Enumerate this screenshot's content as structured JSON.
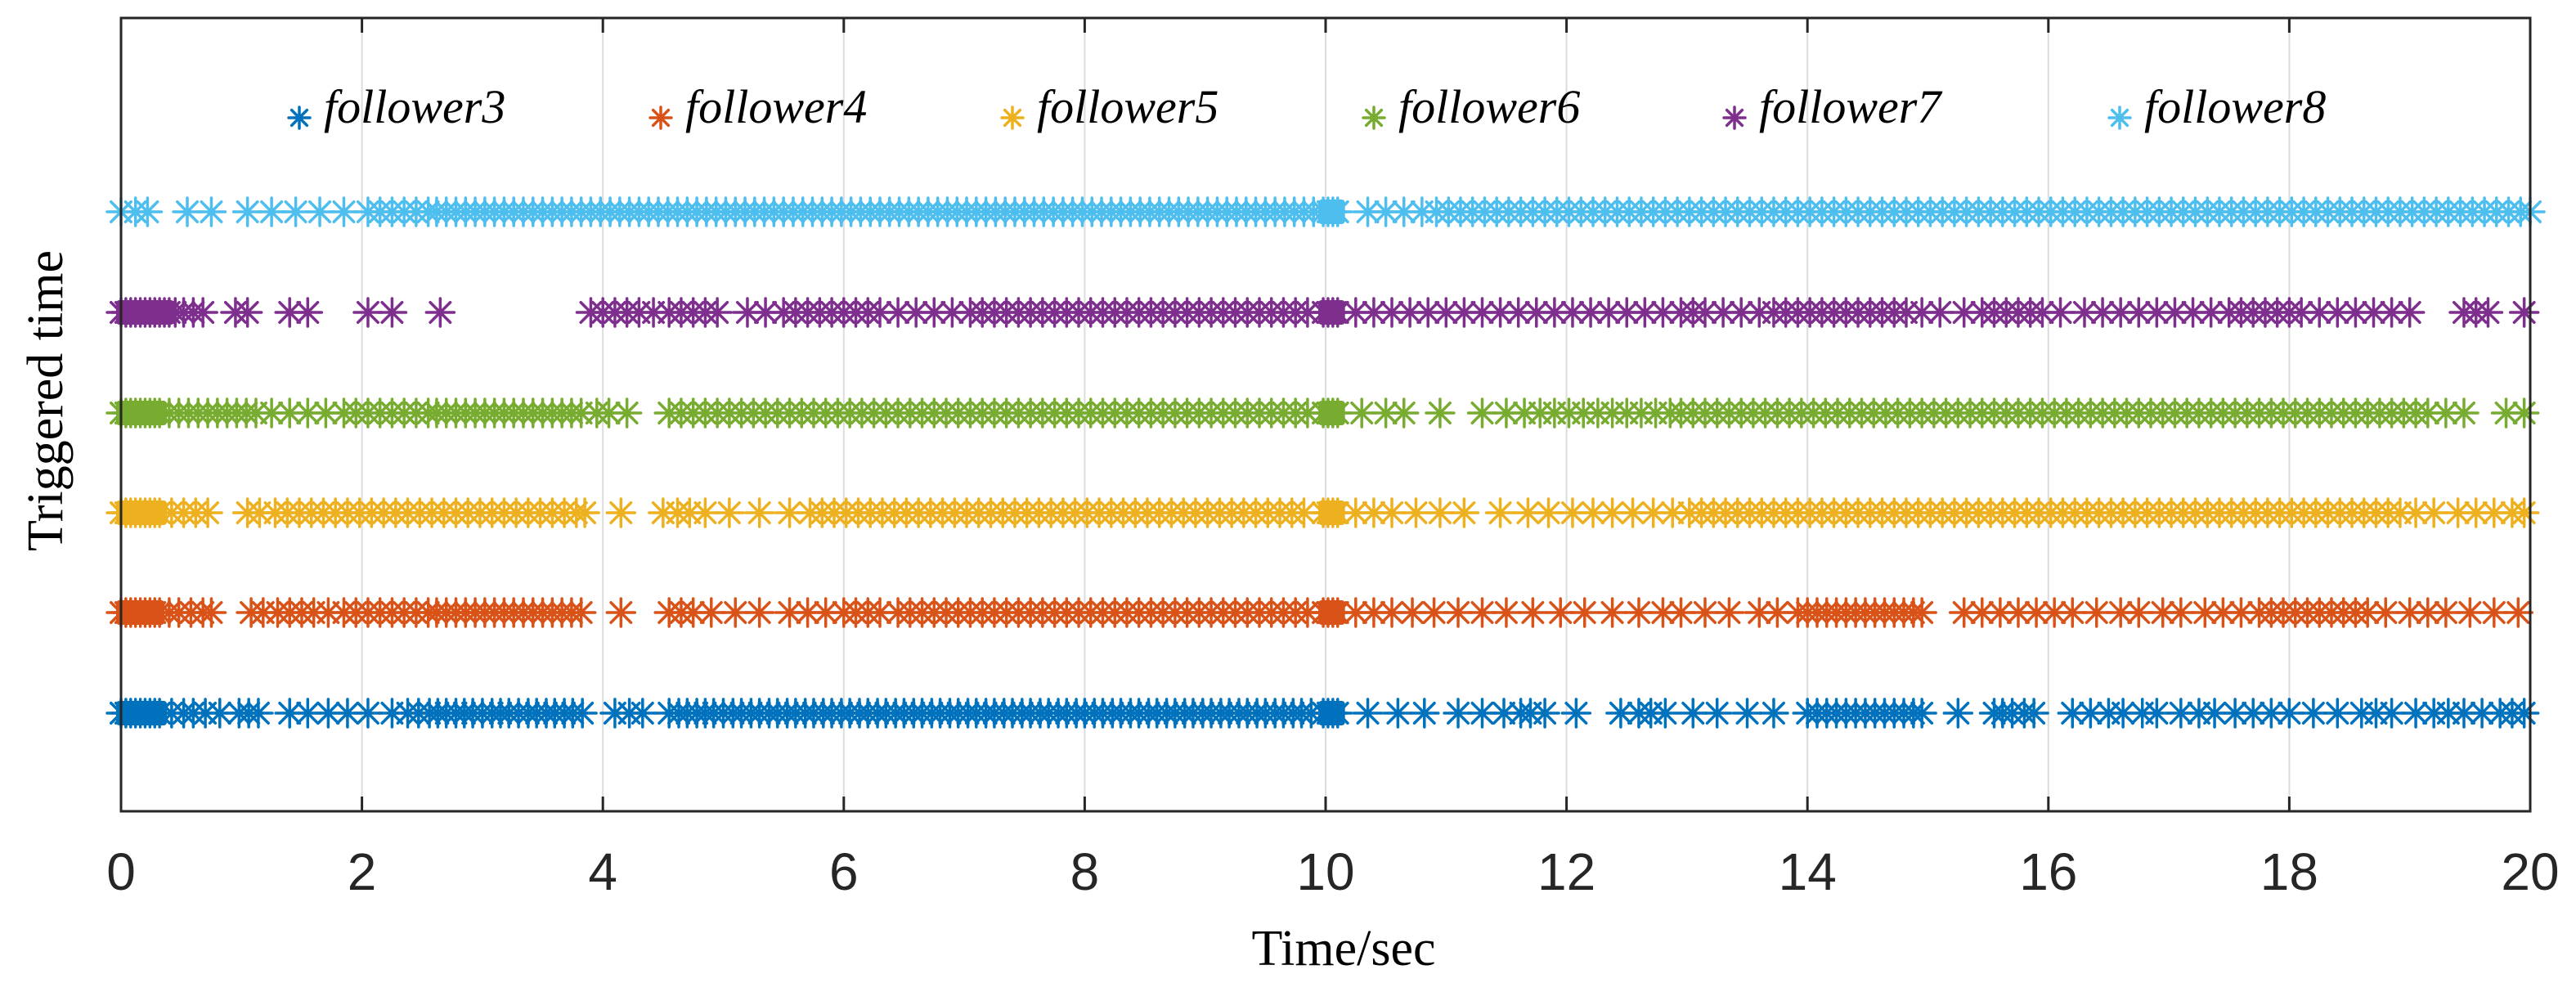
{
  "chart_data": {
    "type": "scatter",
    "title": "",
    "xlabel": "Time/sec",
    "ylabel": "Triggered time",
    "xlim": [
      0,
      20
    ],
    "x_ticks": [
      0,
      2,
      4,
      6,
      8,
      10,
      12,
      14,
      16,
      18,
      20
    ],
    "x_tick_labels": [
      "0",
      "2",
      "4",
      "6",
      "8",
      "10",
      "12",
      "14",
      "16",
      "18",
      "20"
    ],
    "grid": "vertical",
    "legend_placement": "top",
    "colors": {
      "follower3": "#0072BD",
      "follower4": "#D95319",
      "follower5": "#EDB120",
      "follower6": "#77AC30",
      "follower7": "#7E2F8E",
      "follower8": "#4DBEEE",
      "axis": "#262626",
      "grid": "#dcdcdc"
    },
    "series": [
      {
        "name": "follower3",
        "level": 1,
        "color": "#0072BD",
        "dense_segments": [
          [
            0.0,
            0.34
          ],
          [
            9.98,
            10.12
          ]
        ],
        "times": [
          0.42,
          0.52,
          0.6,
          0.7,
          0.82,
          0.98,
          1.06,
          1.14,
          1.4,
          1.55,
          1.72,
          1.88,
          2.05,
          2.25,
          2.38,
          2.47,
          2.56,
          2.63,
          2.7,
          2.78,
          2.85,
          2.92,
          3.0,
          3.08,
          3.15,
          3.22,
          3.3,
          3.38,
          3.45,
          3.53,
          3.6,
          3.68,
          3.75,
          3.83,
          4.1,
          4.22,
          4.33,
          4.55,
          4.63,
          4.7,
          4.78,
          4.85,
          4.92,
          5.0,
          5.08,
          5.15,
          5.23,
          5.3,
          5.38,
          5.45,
          5.53,
          5.6,
          5.68,
          5.75,
          5.83,
          5.9,
          5.98,
          6.05,
          6.13,
          6.2,
          6.28,
          6.35,
          6.43,
          6.5,
          6.58,
          6.65,
          6.73,
          6.8,
          6.88,
          6.95,
          7.03,
          7.1,
          7.18,
          7.25,
          7.33,
          7.4,
          7.48,
          7.55,
          7.63,
          7.7,
          7.78,
          7.85,
          7.93,
          8.0,
          8.08,
          8.15,
          8.23,
          8.3,
          8.38,
          8.45,
          8.53,
          8.6,
          8.68,
          8.75,
          8.83,
          8.9,
          8.98,
          9.05,
          9.13,
          9.2,
          9.28,
          9.35,
          9.43,
          9.5,
          9.58,
          9.65,
          9.73,
          9.8,
          9.88,
          10.35,
          10.6,
          10.82,
          11.1,
          11.3,
          11.48,
          11.62,
          11.7,
          11.82,
          12.08,
          12.45,
          12.6,
          12.7,
          12.82,
          13.05,
          13.25,
          13.5,
          13.72,
          14.0,
          14.08,
          14.16,
          14.24,
          14.32,
          14.4,
          14.48,
          14.56,
          14.64,
          14.72,
          14.8,
          14.88,
          14.95,
          15.25,
          15.55,
          15.62,
          15.7,
          15.8,
          15.88,
          16.2,
          16.35,
          16.5,
          16.62,
          16.78,
          16.9,
          17.1,
          17.25,
          17.38,
          17.55,
          17.7,
          17.85,
          18.0,
          18.2,
          18.4,
          18.6,
          18.72,
          18.85,
          19.05,
          19.2,
          19.32,
          19.45,
          19.6,
          19.75,
          19.85,
          19.95
        ]
      },
      {
        "name": "follower4",
        "level": 2,
        "color": "#D95319",
        "dense_segments": [
          [
            0.0,
            0.32
          ],
          [
            9.98,
            10.12
          ]
        ],
        "times": [
          0.4,
          0.48,
          0.58,
          0.68,
          0.75,
          1.08,
          1.18,
          1.3,
          1.4,
          1.5,
          1.6,
          1.72,
          1.85,
          1.95,
          2.05,
          2.15,
          2.25,
          2.35,
          2.45,
          2.55,
          2.62,
          2.7,
          2.78,
          2.86,
          2.94,
          3.02,
          3.1,
          3.18,
          3.26,
          3.34,
          3.42,
          3.5,
          3.58,
          3.66,
          3.74,
          3.82,
          4.15,
          4.55,
          4.65,
          4.75,
          4.9,
          5.1,
          5.3,
          5.55,
          5.7,
          5.85,
          6.0,
          6.1,
          6.2,
          6.3,
          6.45,
          6.55,
          6.65,
          6.75,
          6.85,
          6.95,
          7.05,
          7.15,
          7.25,
          7.35,
          7.45,
          7.55,
          7.65,
          7.75,
          7.85,
          7.95,
          8.05,
          8.15,
          8.25,
          8.35,
          8.45,
          8.55,
          8.65,
          8.75,
          8.85,
          8.95,
          9.05,
          9.15,
          9.25,
          9.35,
          9.45,
          9.55,
          9.65,
          9.75,
          9.85,
          10.25,
          10.4,
          10.55,
          10.72,
          10.9,
          11.1,
          11.3,
          11.5,
          11.72,
          11.95,
          12.15,
          12.38,
          12.6,
          12.8,
          12.95,
          13.15,
          13.35,
          13.6,
          13.75,
          13.92,
          14.0,
          14.08,
          14.16,
          14.24,
          14.32,
          14.4,
          14.48,
          14.56,
          14.64,
          14.72,
          14.8,
          14.88,
          14.95,
          15.3,
          15.45,
          15.6,
          15.75,
          15.9,
          16.05,
          16.2,
          16.4,
          16.6,
          16.75,
          16.95,
          17.1,
          17.3,
          17.45,
          17.6,
          17.75,
          17.85,
          17.95,
          18.05,
          18.15,
          18.25,
          18.35,
          18.45,
          18.55,
          18.65,
          18.8,
          19.0,
          19.15,
          19.3,
          19.5,
          19.7,
          19.9
        ]
      },
      {
        "name": "follower5",
        "level": 3,
        "color": "#EDB120",
        "dense_segments": [
          [
            0.0,
            0.34
          ],
          [
            9.98,
            10.12
          ]
        ],
        "times": [
          0.42,
          0.52,
          0.62,
          0.72,
          1.05,
          1.15,
          1.28,
          1.38,
          1.48,
          1.58,
          1.68,
          1.78,
          1.88,
          1.98,
          2.08,
          2.18,
          2.28,
          2.38,
          2.48,
          2.58,
          2.68,
          2.78,
          2.88,
          2.98,
          3.08,
          3.18,
          3.28,
          3.38,
          3.48,
          3.58,
          3.68,
          3.78,
          3.85,
          4.15,
          4.5,
          4.62,
          4.72,
          4.85,
          5.05,
          5.3,
          5.55,
          5.72,
          5.82,
          5.92,
          6.02,
          6.12,
          6.22,
          6.32,
          6.42,
          6.52,
          6.62,
          6.72,
          6.82,
          6.92,
          7.02,
          7.12,
          7.22,
          7.32,
          7.42,
          7.52,
          7.62,
          7.72,
          7.82,
          7.92,
          8.02,
          8.12,
          8.22,
          8.32,
          8.42,
          8.52,
          8.62,
          8.72,
          8.82,
          8.92,
          9.02,
          9.12,
          9.22,
          9.32,
          9.42,
          9.52,
          9.62,
          9.72,
          9.82,
          10.25,
          10.4,
          10.55,
          10.75,
          10.95,
          11.15,
          11.45,
          11.68,
          11.85,
          12.05,
          12.22,
          12.38,
          12.55,
          12.72,
          12.88,
          13.02,
          13.12,
          13.22,
          13.32,
          13.42,
          13.52,
          13.62,
          13.72,
          13.82,
          13.92,
          14.02,
          14.12,
          14.22,
          14.32,
          14.42,
          14.52,
          14.62,
          14.72,
          14.82,
          14.92,
          15.02,
          15.12,
          15.22,
          15.32,
          15.42,
          15.52,
          15.62,
          15.72,
          15.82,
          15.92,
          16.02,
          16.12,
          16.22,
          16.32,
          16.42,
          16.52,
          16.62,
          16.72,
          16.82,
          16.92,
          17.02,
          17.12,
          17.22,
          17.32,
          17.42,
          17.52,
          17.62,
          17.72,
          17.82,
          17.92,
          18.02,
          18.12,
          18.22,
          18.32,
          18.42,
          18.52,
          18.62,
          18.72,
          18.82,
          18.92,
          19.05,
          19.2,
          19.4,
          19.55,
          19.7,
          19.85,
          19.95
        ]
      },
      {
        "name": "follower6",
        "level": 4,
        "color": "#77AC30",
        "dense_segments": [
          [
            0.0,
            0.34
          ],
          [
            9.98,
            10.12
          ]
        ],
        "times": [
          0.4,
          0.48,
          0.56,
          0.64,
          0.72,
          0.8,
          0.88,
          0.96,
          1.04,
          1.12,
          1.25,
          1.4,
          1.55,
          1.7,
          1.85,
          1.95,
          2.05,
          2.15,
          2.25,
          2.35,
          2.45,
          2.55,
          2.62,
          2.7,
          2.78,
          2.86,
          2.94,
          3.02,
          3.1,
          3.18,
          3.26,
          3.34,
          3.42,
          3.5,
          3.58,
          3.66,
          3.74,
          3.82,
          3.95,
          4.05,
          4.2,
          4.55,
          4.65,
          4.75,
          4.85,
          4.95,
          5.05,
          5.15,
          5.25,
          5.35,
          5.45,
          5.55,
          5.65,
          5.75,
          5.85,
          5.95,
          6.05,
          6.15,
          6.25,
          6.35,
          6.45,
          6.55,
          6.65,
          6.75,
          6.85,
          6.95,
          7.05,
          7.15,
          7.25,
          7.35,
          7.45,
          7.55,
          7.65,
          7.75,
          7.85,
          7.95,
          8.05,
          8.15,
          8.25,
          8.35,
          8.45,
          8.55,
          8.65,
          8.75,
          8.85,
          8.95,
          9.05,
          9.15,
          9.25,
          9.35,
          9.45,
          9.55,
          9.65,
          9.75,
          9.85,
          10.3,
          10.5,
          10.65,
          10.95,
          11.3,
          11.5,
          11.65,
          11.78,
          11.9,
          12.02,
          12.14,
          12.26,
          12.38,
          12.5,
          12.62,
          12.74,
          12.86,
          12.95,
          13.05,
          13.15,
          13.25,
          13.35,
          13.45,
          13.55,
          13.65,
          13.75,
          13.85,
          13.95,
          14.05,
          14.15,
          14.25,
          14.35,
          14.45,
          14.55,
          14.65,
          14.75,
          14.85,
          14.95,
          15.05,
          15.15,
          15.25,
          15.35,
          15.45,
          15.55,
          15.65,
          15.75,
          15.85,
          15.95,
          16.05,
          16.15,
          16.25,
          16.35,
          16.45,
          16.55,
          16.65,
          16.75,
          16.85,
          16.95,
          17.05,
          17.15,
          17.25,
          17.35,
          17.45,
          17.55,
          17.65,
          17.75,
          17.85,
          17.95,
          18.05,
          18.15,
          18.25,
          18.35,
          18.45,
          18.55,
          18.65,
          18.75,
          18.85,
          18.95,
          19.05,
          19.15,
          19.3,
          19.45,
          19.8,
          19.95
        ]
      },
      {
        "name": "follower7",
        "level": 5,
        "color": "#7E2F8E",
        "dense_segments": [
          [
            0.0,
            0.4
          ],
          [
            9.98,
            10.12
          ]
        ],
        "times": [
          0.45,
          0.52,
          0.6,
          0.68,
          0.95,
          1.05,
          1.4,
          1.55,
          2.05,
          2.25,
          2.65,
          3.9,
          4.0,
          4.1,
          4.2,
          4.3,
          4.42,
          4.55,
          4.65,
          4.75,
          4.85,
          4.95,
          5.2,
          5.35,
          5.5,
          5.6,
          5.7,
          5.8,
          5.9,
          6.0,
          6.1,
          6.2,
          6.3,
          6.45,
          6.6,
          6.75,
          6.9,
          7.05,
          7.15,
          7.25,
          7.35,
          7.45,
          7.55,
          7.65,
          7.75,
          7.85,
          7.95,
          8.05,
          8.15,
          8.25,
          8.35,
          8.45,
          8.55,
          8.65,
          8.75,
          8.85,
          8.95,
          9.05,
          9.15,
          9.25,
          9.35,
          9.45,
          9.55,
          9.65,
          9.75,
          9.85,
          10.25,
          10.4,
          10.55,
          10.7,
          10.85,
          11.0,
          11.15,
          11.3,
          11.45,
          11.6,
          11.75,
          11.9,
          12.05,
          12.2,
          12.35,
          12.5,
          12.65,
          12.8,
          12.95,
          13.05,
          13.15,
          13.3,
          13.45,
          13.6,
          13.72,
          13.82,
          13.92,
          14.02,
          14.12,
          14.22,
          14.32,
          14.42,
          14.52,
          14.62,
          14.72,
          14.82,
          14.95,
          15.1,
          15.3,
          15.45,
          15.55,
          15.65,
          15.75,
          15.85,
          15.95,
          16.1,
          16.3,
          16.45,
          16.6,
          16.75,
          16.9,
          17.05,
          17.2,
          17.35,
          17.5,
          17.6,
          17.7,
          17.8,
          17.9,
          18.0,
          18.1,
          18.25,
          18.4,
          18.55,
          18.7,
          18.85,
          19.0,
          19.45,
          19.55,
          19.65,
          19.95
        ]
      },
      {
        "name": "follower8",
        "level": 6,
        "color": "#4DBEEE",
        "dense_segments": [
          [
            9.98,
            10.12
          ]
        ],
        "times": [
          0.0,
          0.12,
          0.22,
          0.55,
          0.75,
          1.05,
          1.25,
          1.45,
          1.65,
          1.85,
          2.05,
          2.15,
          2.25,
          2.35,
          2.45,
          2.55,
          2.62,
          2.7,
          2.78,
          2.86,
          2.94,
          3.02,
          3.1,
          3.18,
          3.26,
          3.34,
          3.42,
          3.5,
          3.58,
          3.66,
          3.74,
          3.82,
          3.9,
          3.98,
          4.06,
          4.14,
          4.22,
          4.3,
          4.38,
          4.46,
          4.54,
          4.62,
          4.7,
          4.78,
          4.86,
          4.94,
          5.02,
          5.1,
          5.18,
          5.26,
          5.34,
          5.42,
          5.5,
          5.58,
          5.66,
          5.74,
          5.82,
          5.9,
          5.98,
          6.06,
          6.14,
          6.22,
          6.3,
          6.38,
          6.46,
          6.54,
          6.62,
          6.7,
          6.78,
          6.86,
          6.94,
          7.02,
          7.1,
          7.18,
          7.26,
          7.34,
          7.42,
          7.5,
          7.58,
          7.66,
          7.74,
          7.82,
          7.9,
          7.98,
          8.06,
          8.14,
          8.22,
          8.3,
          8.38,
          8.46,
          8.54,
          8.62,
          8.7,
          8.78,
          8.86,
          8.94,
          9.02,
          9.1,
          9.18,
          9.26,
          9.34,
          9.42,
          9.5,
          9.58,
          9.66,
          9.74,
          9.82,
          9.9,
          10.35,
          10.5,
          10.65,
          10.8,
          10.92,
          11.02,
          11.12,
          11.22,
          11.32,
          11.42,
          11.52,
          11.62,
          11.72,
          11.82,
          11.92,
          12.02,
          12.12,
          12.22,
          12.32,
          12.42,
          12.52,
          12.62,
          12.72,
          12.82,
          12.92,
          13.02,
          13.12,
          13.22,
          13.32,
          13.42,
          13.52,
          13.62,
          13.72,
          13.82,
          13.92,
          14.02,
          14.12,
          14.22,
          14.32,
          14.42,
          14.52,
          14.62,
          14.72,
          14.82,
          14.92,
          15.02,
          15.12,
          15.22,
          15.32,
          15.42,
          15.52,
          15.62,
          15.72,
          15.82,
          15.92,
          16.02,
          16.12,
          16.22,
          16.32,
          16.42,
          16.52,
          16.62,
          16.72,
          16.82,
          16.92,
          17.02,
          17.12,
          17.22,
          17.32,
          17.42,
          17.52,
          17.62,
          17.72,
          17.82,
          17.92,
          18.02,
          18.12,
          18.22,
          18.32,
          18.42,
          18.52,
          18.62,
          18.72,
          18.82,
          18.92,
          19.02,
          19.12,
          19.22,
          19.32,
          19.42,
          19.52,
          19.62,
          19.72,
          19.82,
          19.92,
          20.0
        ]
      }
    ]
  }
}
